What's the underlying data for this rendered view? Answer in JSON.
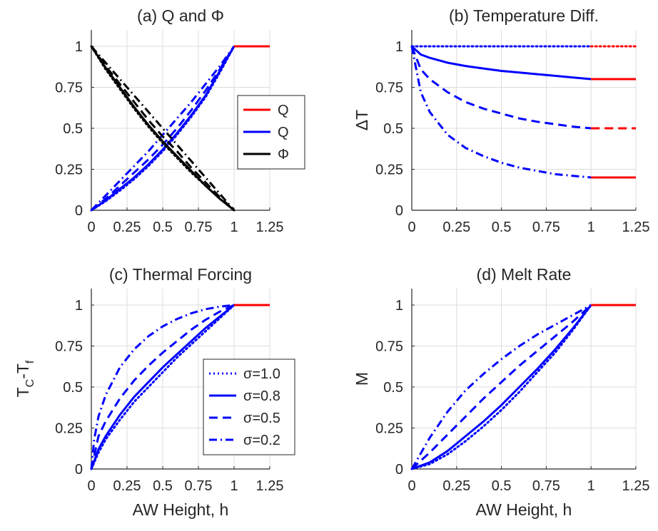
{
  "colors": {
    "red": "#ff0000",
    "blue": "#0000ff",
    "black": "#000000",
    "grid": "#dcdcdc",
    "axis": "#262626"
  },
  "chart_data": [
    {
      "panel": "a",
      "type": "line",
      "title": "(a) Q and Φ",
      "xlabel": "",
      "ylabel": "",
      "xlim": [
        0,
        1.25
      ],
      "ylim": [
        0,
        1.1
      ],
      "xticks": [
        "0",
        "0.25",
        "0.5",
        "0.75",
        "1",
        "1.25"
      ],
      "yticks": [
        "0",
        "0.25",
        "0.5",
        "0.75",
        "1"
      ],
      "grid": true,
      "legend": {
        "placement": "inside-right",
        "entries": [
          {
            "label": "Q",
            "color": "#ff0000",
            "style": "solid"
          },
          {
            "label": "Q",
            "color": "#0000ff",
            "style": "solid"
          },
          {
            "label": "Φ",
            "color": "#000000",
            "style": "solid"
          }
        ]
      },
      "series": [
        {
          "color": "#0000ff",
          "style": "dotted",
          "x": [
            0,
            0.1,
            0.2,
            0.3,
            0.4,
            0.5,
            0.6,
            0.7,
            0.8,
            0.9,
            1.0
          ],
          "y": [
            0,
            0.055,
            0.12,
            0.19,
            0.27,
            0.36,
            0.46,
            0.57,
            0.69,
            0.84,
            1.0
          ]
        },
        {
          "color": "#0000ff",
          "style": "solid",
          "x": [
            0,
            0.1,
            0.2,
            0.3,
            0.4,
            0.5,
            0.6,
            0.7,
            0.8,
            0.9,
            1.0
          ],
          "y": [
            0,
            0.06,
            0.13,
            0.2,
            0.28,
            0.37,
            0.47,
            0.58,
            0.7,
            0.85,
            1.0
          ]
        },
        {
          "color": "#0000ff",
          "style": "dashed",
          "x": [
            0,
            0.1,
            0.2,
            0.3,
            0.4,
            0.5,
            0.6,
            0.7,
            0.8,
            0.9,
            1.0
          ],
          "y": [
            0,
            0.07,
            0.15,
            0.23,
            0.31,
            0.4,
            0.5,
            0.61,
            0.73,
            0.86,
            1.0
          ]
        },
        {
          "color": "#0000ff",
          "style": "dashdot",
          "x": [
            0,
            0.1,
            0.2,
            0.3,
            0.4,
            0.5,
            0.6,
            0.7,
            0.8,
            0.9,
            1.0
          ],
          "y": [
            0,
            0.09,
            0.18,
            0.27,
            0.36,
            0.46,
            0.56,
            0.66,
            0.77,
            0.88,
            1.0
          ]
        },
        {
          "color": "#000000",
          "style": "dotted",
          "x": [
            0,
            0.1,
            0.2,
            0.3,
            0.4,
            0.5,
            0.6,
            0.7,
            0.8,
            0.9,
            1.0
          ],
          "y": [
            1.0,
            0.86,
            0.74,
            0.62,
            0.51,
            0.41,
            0.32,
            0.23,
            0.15,
            0.07,
            0
          ]
        },
        {
          "color": "#000000",
          "style": "solid",
          "x": [
            0,
            0.1,
            0.2,
            0.3,
            0.4,
            0.5,
            0.6,
            0.7,
            0.8,
            0.9,
            1.0
          ],
          "y": [
            1.0,
            0.87,
            0.75,
            0.63,
            0.52,
            0.42,
            0.33,
            0.24,
            0.15,
            0.07,
            0
          ]
        },
        {
          "color": "#000000",
          "style": "dashed",
          "x": [
            0,
            0.1,
            0.2,
            0.3,
            0.4,
            0.5,
            0.6,
            0.7,
            0.8,
            0.9,
            1.0
          ],
          "y": [
            1.0,
            0.88,
            0.77,
            0.66,
            0.55,
            0.45,
            0.36,
            0.26,
            0.17,
            0.08,
            0
          ]
        },
        {
          "color": "#000000",
          "style": "dashdot",
          "x": [
            0,
            0.1,
            0.2,
            0.3,
            0.4,
            0.5,
            0.6,
            0.7,
            0.8,
            0.9,
            1.0
          ],
          "y": [
            1.0,
            0.9,
            0.8,
            0.7,
            0.6,
            0.5,
            0.4,
            0.3,
            0.2,
            0.1,
            0
          ]
        },
        {
          "color": "#ff0000",
          "style": "solid",
          "x": [
            1.0,
            1.25
          ],
          "y": [
            1.0,
            1.0
          ]
        }
      ]
    },
    {
      "panel": "b",
      "type": "line",
      "title": "(b) Temperature Diff.",
      "xlabel": "",
      "ylabel": "ΔT",
      "xlim": [
        0,
        1.25
      ],
      "ylim": [
        0,
        1.1
      ],
      "xticks": [
        "0",
        "0.25",
        "0.5",
        "0.75",
        "1",
        "1.25"
      ],
      "yticks": [
        "0",
        "0.25",
        "0.5",
        "0.75",
        "1"
      ],
      "grid": true,
      "series": [
        {
          "color": "#0000ff",
          "style": "dotted",
          "x": [
            0,
            1.0
          ],
          "y": [
            1.0,
            1.0
          ]
        },
        {
          "color": "#0000ff",
          "style": "solid",
          "x": [
            0,
            0.05,
            0.1,
            0.2,
            0.3,
            0.4,
            0.5,
            0.6,
            0.7,
            0.8,
            0.9,
            1.0
          ],
          "y": [
            1.0,
            0.95,
            0.93,
            0.9,
            0.88,
            0.865,
            0.85,
            0.84,
            0.83,
            0.82,
            0.81,
            0.8
          ]
        },
        {
          "color": "#0000ff",
          "style": "dashed",
          "x": [
            0,
            0.05,
            0.1,
            0.2,
            0.3,
            0.4,
            0.5,
            0.6,
            0.7,
            0.8,
            0.9,
            1.0
          ],
          "y": [
            1.0,
            0.86,
            0.8,
            0.72,
            0.66,
            0.62,
            0.59,
            0.56,
            0.54,
            0.525,
            0.51,
            0.5
          ]
        },
        {
          "color": "#0000ff",
          "style": "dashdot",
          "x": [
            0,
            0.05,
            0.1,
            0.2,
            0.3,
            0.4,
            0.5,
            0.6,
            0.7,
            0.8,
            0.9,
            1.0
          ],
          "y": [
            1.0,
            0.72,
            0.6,
            0.46,
            0.38,
            0.33,
            0.29,
            0.26,
            0.24,
            0.22,
            0.21,
            0.2
          ]
        },
        {
          "color": "#ff0000",
          "style": "dotted",
          "x": [
            1.0,
            1.25
          ],
          "y": [
            1.0,
            1.0
          ]
        },
        {
          "color": "#ff0000",
          "style": "solid",
          "x": [
            1.0,
            1.25
          ],
          "y": [
            0.8,
            0.8
          ]
        },
        {
          "color": "#ff0000",
          "style": "dashed",
          "x": [
            1.0,
            1.25
          ],
          "y": [
            0.5,
            0.5
          ]
        },
        {
          "color": "#ff0000",
          "style": "solid",
          "x": [
            1.0,
            1.25
          ],
          "y": [
            0.2,
            0.2
          ]
        }
      ]
    },
    {
      "panel": "c",
      "type": "line",
      "title": "(c) Thermal Forcing",
      "xlabel": "AW Height, h",
      "ylabel": "T_C-T_f",
      "ylabel_main": "T",
      "ylabel_sub1": "C",
      "ylabel_mid": "-T",
      "ylabel_sub2": "f",
      "xlim": [
        0,
        1.25
      ],
      "ylim": [
        0,
        1.1
      ],
      "xticks": [
        "0",
        "0.25",
        "0.5",
        "0.75",
        "1",
        "1.25"
      ],
      "yticks": [
        "0",
        "0.25",
        "0.5",
        "0.75",
        "1"
      ],
      "grid": true,
      "legend": {
        "placement": "lower-right",
        "entries": [
          {
            "label": "σ=1.0",
            "color": "#0000ff",
            "style": "dotted"
          },
          {
            "label": "σ=0.8",
            "color": "#0000ff",
            "style": "solid"
          },
          {
            "label": "σ=0.5",
            "color": "#0000ff",
            "style": "dashed"
          },
          {
            "label": "σ=0.2",
            "color": "#0000ff",
            "style": "dashdot"
          }
        ]
      },
      "series": [
        {
          "color": "#0000ff",
          "style": "dotted",
          "x": [
            0,
            0.05,
            0.1,
            0.2,
            0.3,
            0.4,
            0.5,
            0.6,
            0.7,
            0.8,
            0.9,
            1.0
          ],
          "y": [
            0,
            0.1,
            0.18,
            0.3,
            0.41,
            0.5,
            0.59,
            0.68,
            0.76,
            0.84,
            0.92,
            1.0
          ]
        },
        {
          "color": "#0000ff",
          "style": "solid",
          "x": [
            0,
            0.05,
            0.1,
            0.2,
            0.3,
            0.4,
            0.5,
            0.6,
            0.7,
            0.8,
            0.9,
            1.0
          ],
          "y": [
            0,
            0.12,
            0.2,
            0.33,
            0.44,
            0.53,
            0.62,
            0.7,
            0.78,
            0.86,
            0.93,
            1.0
          ]
        },
        {
          "color": "#0000ff",
          "style": "dashed",
          "x": [
            0,
            0.05,
            0.1,
            0.2,
            0.3,
            0.4,
            0.5,
            0.6,
            0.7,
            0.8,
            0.9,
            1.0
          ],
          "y": [
            0,
            0.2,
            0.29,
            0.43,
            0.54,
            0.63,
            0.71,
            0.78,
            0.85,
            0.91,
            0.96,
            1.0
          ]
        },
        {
          "color": "#0000ff",
          "style": "dashdot",
          "x": [
            0,
            0.02,
            0.05,
            0.1,
            0.2,
            0.3,
            0.4,
            0.5,
            0.6,
            0.7,
            0.8,
            0.9,
            1.0
          ],
          "y": [
            0,
            0.18,
            0.32,
            0.45,
            0.62,
            0.73,
            0.81,
            0.87,
            0.915,
            0.95,
            0.975,
            0.99,
            1.0
          ]
        },
        {
          "color": "#ff0000",
          "style": "solid",
          "x": [
            1.0,
            1.25
          ],
          "y": [
            1.0,
            1.0
          ]
        }
      ]
    },
    {
      "panel": "d",
      "type": "line",
      "title": "(d) Melt Rate",
      "xlabel": "AW Height, h",
      "ylabel": "M",
      "xlim": [
        0,
        1.25
      ],
      "ylim": [
        0,
        1.1
      ],
      "xticks": [
        "0",
        "0.25",
        "0.5",
        "0.75",
        "1",
        "1.25"
      ],
      "yticks": [
        "0",
        "0.25",
        "0.5",
        "0.75",
        "1"
      ],
      "grid": true,
      "series": [
        {
          "color": "#0000ff",
          "style": "dotted",
          "x": [
            0,
            0.1,
            0.2,
            0.3,
            0.4,
            0.5,
            0.6,
            0.7,
            0.8,
            0.9,
            1.0
          ],
          "y": [
            0,
            0.03,
            0.09,
            0.17,
            0.26,
            0.36,
            0.47,
            0.59,
            0.71,
            0.85,
            1.0
          ]
        },
        {
          "color": "#0000ff",
          "style": "solid",
          "x": [
            0,
            0.1,
            0.2,
            0.3,
            0.4,
            0.5,
            0.6,
            0.7,
            0.8,
            0.9,
            1.0
          ],
          "y": [
            0,
            0.04,
            0.11,
            0.2,
            0.29,
            0.39,
            0.5,
            0.61,
            0.73,
            0.86,
            1.0
          ]
        },
        {
          "color": "#0000ff",
          "style": "dashed",
          "x": [
            0,
            0.1,
            0.2,
            0.3,
            0.4,
            0.5,
            0.6,
            0.7,
            0.8,
            0.9,
            1.0
          ],
          "y": [
            0,
            0.1,
            0.21,
            0.32,
            0.43,
            0.53,
            0.63,
            0.72,
            0.81,
            0.9,
            1.0
          ]
        },
        {
          "color": "#0000ff",
          "style": "dashdot",
          "x": [
            0,
            0.1,
            0.2,
            0.3,
            0.4,
            0.5,
            0.6,
            0.7,
            0.8,
            0.9,
            1.0
          ],
          "y": [
            0,
            0.19,
            0.35,
            0.48,
            0.58,
            0.67,
            0.75,
            0.82,
            0.88,
            0.94,
            1.0
          ]
        },
        {
          "color": "#ff0000",
          "style": "solid",
          "x": [
            1.0,
            1.25
          ],
          "y": [
            1.0,
            1.0
          ]
        }
      ]
    }
  ]
}
